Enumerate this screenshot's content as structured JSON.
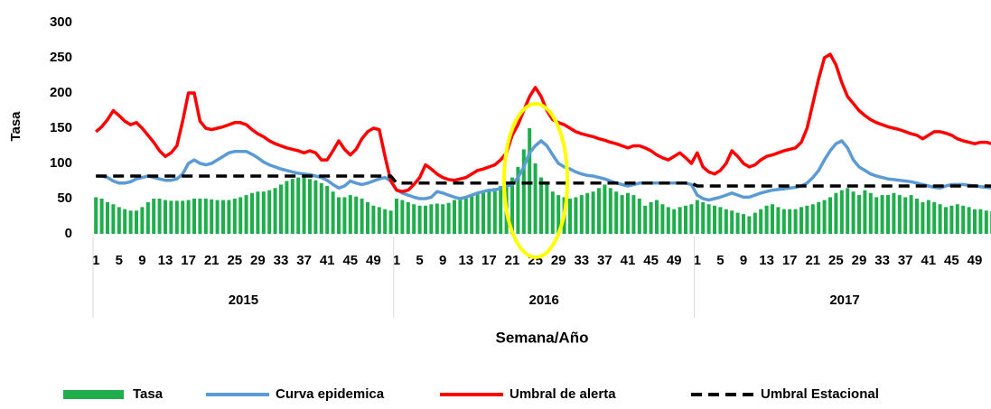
{
  "chart_data": {
    "type": "bar-line",
    "y_label": "Tasa",
    "x_label": "Semana/Año",
    "ylim": [
      0,
      300
    ],
    "yticks": [
      0,
      50,
      100,
      150,
      200,
      250,
      300
    ],
    "groups": [
      "2015",
      "2016",
      "2017"
    ],
    "categories": [
      "1",
      null,
      null,
      null,
      "5",
      null,
      null,
      null,
      "9",
      null,
      null,
      null,
      "13",
      null,
      null,
      null,
      "17",
      null,
      null,
      null,
      "21",
      null,
      null,
      null,
      "25",
      null,
      null,
      null,
      "29",
      null,
      null,
      null,
      "33",
      null,
      null,
      null,
      "37",
      null,
      null,
      null,
      "41",
      null,
      null,
      null,
      "45",
      null,
      null,
      null,
      "49",
      null,
      null,
      null,
      "1",
      null,
      null,
      null,
      "5",
      null,
      null,
      null,
      "9",
      null,
      null,
      null,
      "13",
      null,
      null,
      null,
      "17",
      null,
      null,
      null,
      "21",
      null,
      null,
      null,
      "25",
      null,
      null,
      null,
      "29",
      null,
      null,
      null,
      "33",
      null,
      null,
      null,
      "37",
      null,
      null,
      null,
      "41",
      null,
      null,
      null,
      "45",
      null,
      null,
      null,
      "49",
      null,
      null,
      null,
      "1",
      null,
      null,
      null,
      "5",
      null,
      null,
      null,
      "9",
      null,
      null,
      null,
      "13",
      null,
      null,
      null,
      "17",
      null,
      null,
      null,
      "21",
      null,
      null,
      null,
      "25",
      null,
      null,
      null,
      "29",
      null,
      null,
      null,
      "33",
      null,
      null,
      null,
      "37",
      null,
      null,
      null,
      "41",
      null,
      null,
      null,
      "45",
      null,
      null,
      null,
      "49",
      null,
      null,
      null
    ],
    "series": [
      {
        "name": "Tasa",
        "kind": "bar",
        "color": "#1fae4b",
        "values": [
          52,
          50,
          45,
          42,
          38,
          35,
          33,
          33,
          38,
          45,
          50,
          50,
          48,
          47,
          47,
          47,
          48,
          50,
          50,
          50,
          49,
          48,
          48,
          48,
          50,
          52,
          55,
          58,
          60,
          60,
          62,
          65,
          70,
          75,
          78,
          80,
          80,
          78,
          76,
          72,
          68,
          60,
          52,
          52,
          55,
          53,
          50,
          45,
          40,
          38,
          35,
          33,
          50,
          48,
          45,
          42,
          40,
          40,
          42,
          43,
          42,
          44,
          48,
          50,
          52,
          55,
          58,
          60,
          62,
          65,
          68,
          72,
          80,
          95,
          120,
          150,
          100,
          80,
          70,
          60,
          55,
          52,
          50,
          52,
          55,
          58,
          60,
          65,
          70,
          65,
          60,
          55,
          58,
          55,
          50,
          40,
          45,
          48,
          42,
          38,
          35,
          38,
          40,
          42,
          48,
          45,
          42,
          40,
          38,
          35,
          33,
          30,
          28,
          25,
          30,
          35,
          40,
          42,
          38,
          35,
          35,
          35,
          38,
          40,
          42,
          45,
          48,
          52,
          58,
          62,
          65,
          60,
          55,
          62,
          58,
          52,
          55,
          55,
          58,
          55,
          52,
          55,
          50,
          45,
          48,
          45,
          42,
          38,
          40,
          42,
          40,
          38,
          35,
          35,
          33,
          32
        ]
      },
      {
        "name": "Curva epidemica",
        "kind": "line",
        "color": "#5b9bd5",
        "values": [
          82,
          82,
          80,
          75,
          72,
          72,
          74,
          78,
          80,
          82,
          80,
          78,
          76,
          76,
          78,
          85,
          100,
          105,
          100,
          98,
          100,
          105,
          110,
          115,
          117,
          117,
          117,
          113,
          108,
          102,
          98,
          95,
          92,
          90,
          88,
          86,
          85,
          84,
          82,
          80,
          76,
          70,
          65,
          68,
          75,
          72,
          70,
          72,
          75,
          78,
          80,
          75,
          62,
          58,
          55,
          52,
          50,
          50,
          52,
          60,
          58,
          55,
          52,
          50,
          52,
          55,
          58,
          60,
          62,
          62,
          65,
          68,
          70,
          80,
          95,
          115,
          125,
          132,
          125,
          112,
          100,
          95,
          92,
          88,
          85,
          83,
          82,
          80,
          78,
          75,
          72,
          70,
          68,
          70,
          72,
          72,
          72,
          72,
          72,
          72,
          72,
          72,
          72,
          70,
          55,
          50,
          48,
          50,
          52,
          55,
          58,
          55,
          52,
          52,
          55,
          58,
          60,
          62,
          63,
          64,
          65,
          66,
          68,
          72,
          80,
          90,
          105,
          118,
          128,
          132,
          122,
          105,
          95,
          90,
          85,
          82,
          80,
          78,
          77,
          76,
          75,
          74,
          72,
          70,
          68,
          66,
          65,
          68,
          70,
          70,
          70,
          69,
          68,
          67,
          66,
          65
        ]
      },
      {
        "name": "Umbral de alerta",
        "kind": "line",
        "color": "#ff0000",
        "values": [
          145,
          152,
          162,
          175,
          168,
          160,
          155,
          158,
          150,
          140,
          130,
          118,
          110,
          115,
          125,
          160,
          200,
          200,
          160,
          150,
          148,
          150,
          152,
          155,
          158,
          158,
          155,
          148,
          142,
          138,
          132,
          128,
          125,
          122,
          120,
          118,
          115,
          118,
          115,
          105,
          105,
          118,
          132,
          120,
          112,
          120,
          135,
          145,
          150,
          148,
          110,
          75,
          62,
          60,
          62,
          70,
          80,
          98,
          92,
          85,
          80,
          77,
          76,
          78,
          80,
          85,
          90,
          92,
          95,
          98,
          105,
          115,
          140,
          155,
          175,
          195,
          208,
          195,
          175,
          162,
          158,
          155,
          150,
          145,
          142,
          140,
          138,
          135,
          133,
          130,
          128,
          125,
          122,
          125,
          125,
          122,
          118,
          112,
          108,
          105,
          110,
          115,
          108,
          100,
          115,
          95,
          88,
          85,
          90,
          100,
          118,
          110,
          100,
          95,
          98,
          105,
          110,
          112,
          115,
          118,
          120,
          122,
          130,
          150,
          185,
          220,
          250,
          255,
          240,
          215,
          195,
          185,
          175,
          168,
          162,
          158,
          155,
          152,
          150,
          148,
          145,
          142,
          140,
          135,
          140,
          145,
          145,
          143,
          140,
          135,
          132,
          130,
          128,
          130,
          130,
          128
        ]
      },
      {
        "name": "Umbral Estacional",
        "kind": "dashed",
        "color": "#000000",
        "values": [
          82,
          82,
          82,
          82,
          82,
          82,
          82,
          82,
          82,
          82,
          82,
          82,
          82,
          82,
          82,
          82,
          82,
          82,
          82,
          82,
          82,
          82,
          82,
          82,
          82,
          82,
          82,
          82,
          82,
          82,
          82,
          82,
          82,
          82,
          82,
          82,
          82,
          82,
          82,
          82,
          82,
          82,
          82,
          82,
          82,
          82,
          82,
          82,
          82,
          82,
          82,
          82,
          72,
          72,
          72,
          72,
          72,
          72,
          72,
          72,
          72,
          72,
          72,
          72,
          72,
          72,
          72,
          72,
          72,
          72,
          72,
          72,
          72,
          72,
          72,
          72,
          72,
          72,
          72,
          72,
          72,
          72,
          72,
          72,
          72,
          72,
          72,
          72,
          72,
          72,
          72,
          72,
          72,
          72,
          72,
          72,
          72,
          72,
          72,
          72,
          72,
          72,
          72,
          72,
          68,
          68,
          68,
          68,
          68,
          68,
          68,
          68,
          68,
          68,
          68,
          68,
          68,
          68,
          68,
          68,
          68,
          68,
          68,
          68,
          68,
          68,
          68,
          68,
          68,
          68,
          68,
          68,
          68,
          68,
          68,
          68,
          68,
          68,
          68,
          68,
          68,
          68,
          68,
          68,
          68,
          68,
          68,
          68,
          68,
          68,
          68,
          68,
          68,
          68,
          68,
          68
        ]
      }
    ]
  }
}
